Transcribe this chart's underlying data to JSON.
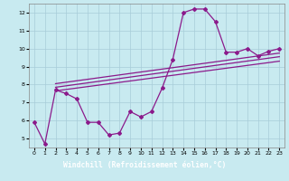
{
  "bg_color": "#c8eaf0",
  "grid_color": "#a8ccd8",
  "line_color": "#8b1a8b",
  "label_bg": "#4a2880",
  "xlabel": "Windchill (Refroidissement éolien,°C)",
  "xlim": [
    -0.5,
    23.5
  ],
  "ylim": [
    4.5,
    12.5
  ],
  "xticks": [
    0,
    1,
    2,
    3,
    4,
    5,
    6,
    7,
    8,
    9,
    10,
    11,
    12,
    13,
    14,
    15,
    16,
    17,
    18,
    19,
    20,
    21,
    22,
    23
  ],
  "yticks": [
    5,
    6,
    7,
    8,
    9,
    10,
    11,
    12
  ],
  "data_x": [
    0,
    1,
    2,
    3,
    4,
    5,
    6,
    7,
    8,
    9,
    10,
    11,
    12,
    13,
    14,
    15,
    16,
    17,
    18,
    19,
    20,
    21,
    22,
    23
  ],
  "data_y": [
    5.9,
    4.7,
    7.7,
    7.5,
    7.2,
    5.9,
    5.9,
    5.2,
    5.3,
    6.5,
    6.2,
    6.5,
    7.8,
    9.4,
    12.0,
    12.2,
    12.2,
    11.5,
    9.8,
    9.8,
    10.0,
    9.6,
    9.85,
    10.0
  ],
  "reg_lines": [
    [
      2.0,
      7.65,
      23.0,
      9.3
    ],
    [
      2.0,
      7.85,
      23.0,
      9.55
    ],
    [
      2.0,
      8.05,
      23.0,
      9.75
    ]
  ]
}
